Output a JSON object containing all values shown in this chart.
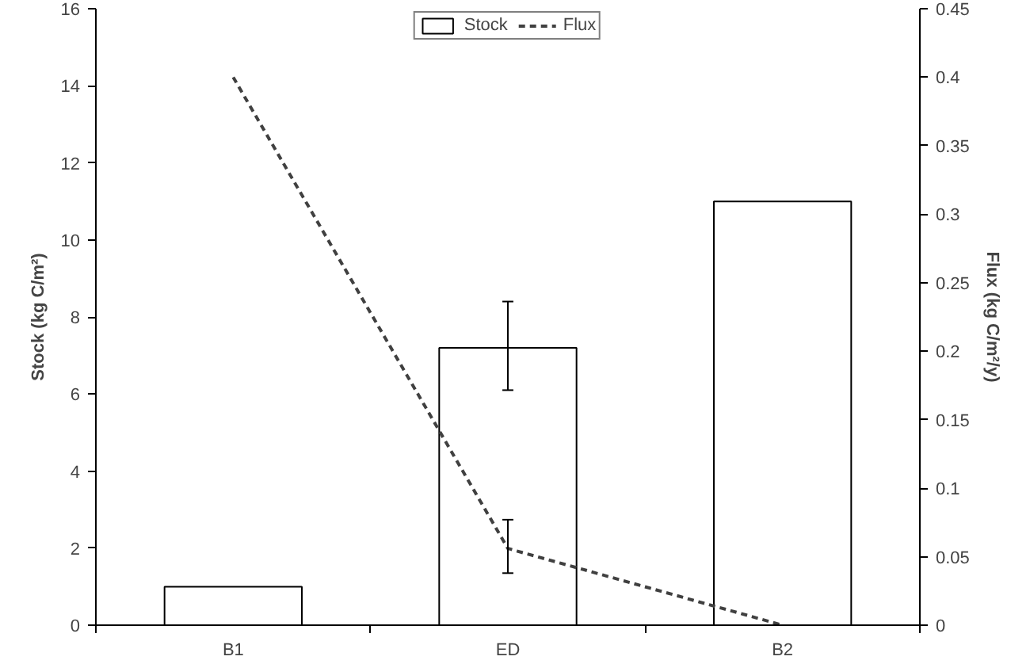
{
  "chart_data": {
    "type": "bar",
    "categories": [
      "B1",
      "ED",
      "B2"
    ],
    "ylabel": "Stock (kg C/m²)",
    "y2label": "Flux (kg C/m²/y)",
    "series": [
      {
        "name": "Stock",
        "color": "#ffffff",
        "values": [
          1,
          7.2,
          11
        ],
        "errors": [
          null,
          [
            6.1,
            8.4
          ],
          null
        ]
      },
      {
        "name": "Flux",
        "type": "line",
        "axis": "y2",
        "color": "#404040",
        "line_style": "dashed",
        "values": [
          0.4,
          0.056,
          0
        ],
        "errors": [
          null,
          [
            0.038,
            0.077
          ],
          null
        ]
      }
    ],
    "ylim": [
      0,
      16
    ],
    "yticks": [
      0,
      2,
      4,
      6,
      8,
      10,
      12,
      14,
      16
    ],
    "y2lim": [
      0,
      0.45
    ],
    "y2ticks": [
      0,
      0.05,
      0.1,
      0.15,
      0.2,
      0.25,
      0.3,
      0.35,
      0.4,
      0.45
    ],
    "legend": "top",
    "grid": false
  }
}
